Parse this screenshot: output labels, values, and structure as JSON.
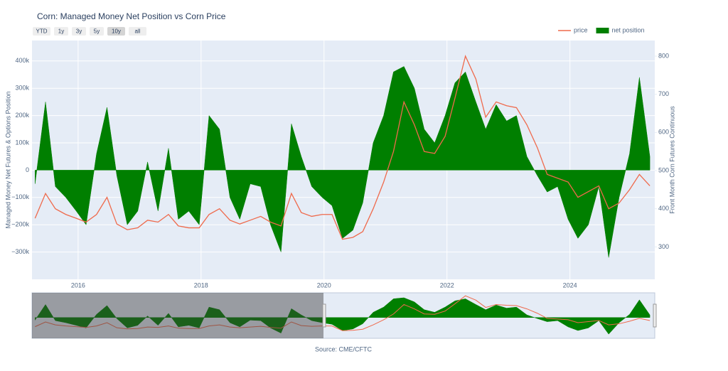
{
  "chart_data": {
    "type": "line",
    "title": "Corn: Managed Money Net Position vs Corn Price",
    "y_title": "Managed Money Net Futures & Options Position",
    "y2_title": "Front Month Corn Futures Continuous",
    "source": "Source: CME/CFTC",
    "range_buttons": [
      "YTD",
      "1y",
      "3y",
      "5y",
      "10y",
      "all"
    ],
    "xlim": [
      2015.25,
      2025.38
    ],
    "xticks": [
      2016,
      2018,
      2020,
      2022,
      2024
    ],
    "ylim": [
      -400000,
      475000
    ],
    "yticks": [
      {
        "value": -300000,
        "label": "−300k"
      },
      {
        "value": -200000,
        "label": "−200k"
      },
      {
        "value": -100000,
        "label": "−100k"
      },
      0,
      {
        "value": 100000,
        "label": "100k"
      },
      {
        "value": 200000,
        "label": "200k"
      },
      {
        "value": 300000,
        "label": "300k"
      },
      {
        "value": 400000,
        "label": "400k"
      }
    ],
    "y2lim": [
      215,
      841
    ],
    "y2ticks": [
      300,
      400,
      500,
      600,
      700,
      800
    ],
    "grid": true,
    "legend": "top-right",
    "x": [
      2015.3,
      2015.47,
      2015.63,
      2015.8,
      2015.97,
      2016.13,
      2016.3,
      2016.47,
      2016.63,
      2016.8,
      2016.97,
      2017.13,
      2017.3,
      2017.47,
      2017.63,
      2017.8,
      2017.97,
      2018.13,
      2018.3,
      2018.47,
      2018.63,
      2018.8,
      2018.97,
      2019.13,
      2019.3,
      2019.47,
      2019.63,
      2019.8,
      2019.97,
      2020.13,
      2020.3,
      2020.47,
      2020.63,
      2020.8,
      2020.97,
      2021.13,
      2021.3,
      2021.47,
      2021.63,
      2021.8,
      2021.97,
      2022.13,
      2022.3,
      2022.47,
      2022.63,
      2022.8,
      2022.97,
      2023.13,
      2023.3,
      2023.47,
      2023.63,
      2023.8,
      2023.97,
      2024.13,
      2024.3,
      2024.47,
      2024.63,
      2024.8,
      2024.97,
      2025.13,
      2025.3
    ],
    "series": [
      {
        "name": "price",
        "color": "#ef6a4c",
        "axis": "y2",
        "values": [
          375,
          440,
          400,
          385,
          375,
          365,
          385,
          430,
          360,
          345,
          350,
          370,
          365,
          385,
          355,
          350,
          350,
          385,
          400,
          370,
          360,
          370,
          380,
          365,
          355,
          440,
          390,
          380,
          385,
          385,
          320,
          325,
          340,
          400,
          470,
          550,
          680,
          620,
          550,
          545,
          590,
          690,
          800,
          740,
          640,
          680,
          670,
          665,
          620,
          560,
          490,
          480,
          470,
          430,
          445,
          460,
          400,
          415,
          450,
          490,
          460
        ]
      },
      {
        "name": "net position",
        "color": "#007f00",
        "fill": "tozero",
        "values": [
          -50000,
          250000,
          -60000,
          -100000,
          -150000,
          -200000,
          60000,
          230000,
          -20000,
          -200000,
          -150000,
          30000,
          -150000,
          80000,
          -180000,
          -150000,
          -200000,
          200000,
          150000,
          -100000,
          -180000,
          -50000,
          -60000,
          -200000,
          -300000,
          170000,
          50000,
          -60000,
          -100000,
          -130000,
          -250000,
          -220000,
          -120000,
          100000,
          200000,
          360000,
          380000,
          300000,
          150000,
          100000,
          200000,
          320000,
          360000,
          250000,
          150000,
          240000,
          180000,
          200000,
          50000,
          -20000,
          -80000,
          -60000,
          -180000,
          -250000,
          -200000,
          -60000,
          -320000,
          -100000,
          60000,
          340000,
          50000
        ]
      }
    ]
  }
}
